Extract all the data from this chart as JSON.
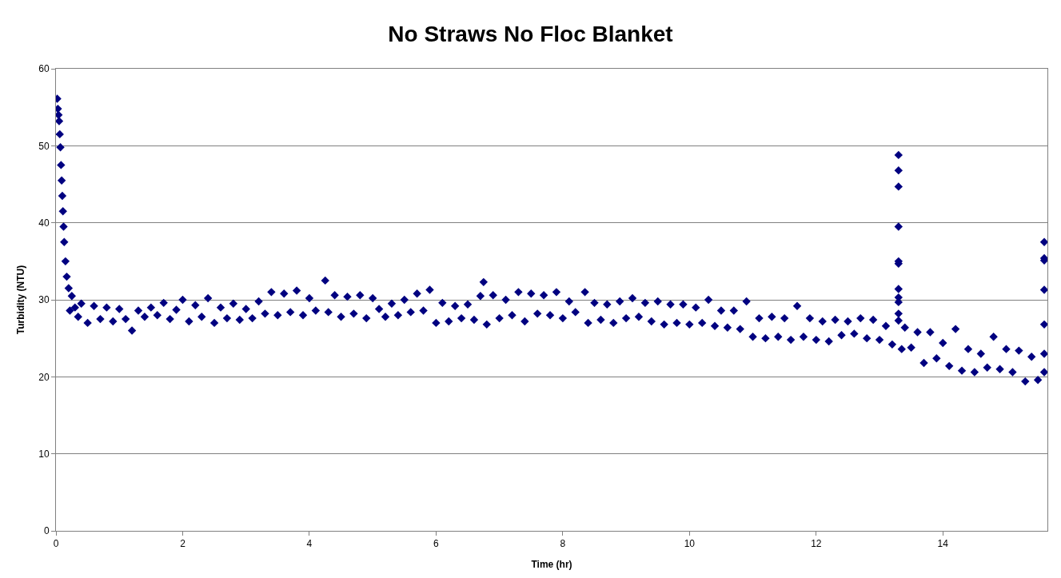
{
  "chart_data": {
    "type": "scatter",
    "title": "No Straws No Floc Blanket",
    "xlabel": "Time (hr)",
    "ylabel": "Turbidity (NTU)",
    "xlim": [
      0,
      15.65
    ],
    "xticks": [
      0,
      2,
      4,
      6,
      8,
      10,
      12,
      14
    ],
    "ylim": [
      0,
      60
    ],
    "yticks": [
      0,
      10,
      20,
      30,
      40,
      50,
      60
    ],
    "grid": "y",
    "marker": "diamond",
    "series": [
      {
        "color": "#000080",
        "x": [
          0.02,
          0.03,
          0.04,
          0.05,
          0.06,
          0.07,
          0.08,
          0.09,
          0.1,
          0.11,
          0.12,
          0.13,
          0.15,
          0.17,
          0.2,
          0.22,
          0.25,
          0.3,
          0.35,
          0.4,
          0.5,
          0.6,
          0.7,
          0.8,
          0.9,
          1.0,
          1.1,
          1.2,
          1.3,
          1.4,
          1.5,
          1.6,
          1.7,
          1.8,
          1.9,
          2.0,
          2.1,
          2.2,
          2.3,
          2.4,
          2.5,
          2.6,
          2.7,
          2.8,
          2.9,
          3.0,
          3.1,
          3.2,
          3.3,
          3.4,
          3.5,
          3.6,
          3.7,
          3.8,
          3.9,
          4.0,
          4.1,
          4.25,
          4.3,
          4.4,
          4.5,
          4.6,
          4.7,
          4.8,
          4.9,
          5.0,
          5.1,
          5.2,
          5.3,
          5.4,
          5.5,
          5.6,
          5.7,
          5.8,
          5.9,
          6.0,
          6.1,
          6.2,
          6.3,
          6.4,
          6.5,
          6.6,
          6.7,
          6.75,
          6.8,
          6.9,
          7.0,
          7.1,
          7.2,
          7.3,
          7.4,
          7.5,
          7.6,
          7.7,
          7.8,
          7.9,
          8.0,
          8.1,
          8.2,
          8.35,
          8.4,
          8.5,
          8.6,
          8.7,
          8.8,
          8.9,
          9.0,
          9.1,
          9.2,
          9.3,
          9.4,
          9.5,
          9.6,
          9.7,
          9.8,
          9.9,
          10.0,
          10.1,
          10.2,
          10.3,
          10.4,
          10.5,
          10.6,
          10.7,
          10.8,
          10.9,
          11.0,
          11.1,
          11.2,
          11.3,
          11.4,
          11.5,
          11.6,
          11.7,
          11.8,
          11.9,
          12.0,
          12.1,
          12.2,
          12.3,
          12.4,
          12.5,
          12.6,
          12.7,
          12.8,
          12.9,
          13.0,
          13.1,
          13.2,
          13.3,
          13.3,
          13.3,
          13.3,
          13.3,
          13.3,
          13.3,
          13.3,
          13.3,
          13.3,
          13.3,
          13.35,
          13.4,
          13.5,
          13.6,
          13.7,
          13.8,
          13.9,
          14.0,
          14.1,
          14.2,
          14.3,
          14.4,
          14.5,
          14.6,
          14.7,
          14.8,
          14.9,
          15.0,
          15.1,
          15.2,
          15.3,
          15.4,
          15.5,
          15.6,
          15.6,
          15.6,
          15.6,
          15.6,
          15.6,
          15.6
        ],
        "values": [
          56.1,
          54.8,
          54.0,
          53.2,
          51.5,
          49.8,
          47.5,
          45.5,
          43.5,
          41.5,
          39.5,
          37.5,
          35.0,
          33.0,
          31.5,
          28.6,
          30.5,
          29.0,
          27.8,
          29.5,
          27.0,
          29.2,
          27.5,
          29.0,
          27.2,
          28.8,
          27.5,
          26.0,
          28.6,
          27.8,
          29.0,
          28.0,
          29.6,
          27.5,
          28.7,
          30.0,
          27.2,
          29.3,
          27.8,
          30.2,
          27.0,
          29.0,
          27.6,
          29.5,
          27.4,
          28.8,
          27.6,
          29.8,
          28.2,
          31.0,
          28.0,
          30.8,
          28.4,
          31.2,
          28.0,
          30.2,
          28.6,
          32.5,
          28.4,
          30.6,
          27.8,
          30.4,
          28.2,
          30.6,
          27.6,
          30.2,
          28.8,
          27.8,
          29.5,
          28.0,
          30.0,
          28.4,
          30.8,
          28.6,
          31.3,
          27.0,
          29.6,
          27.2,
          29.2,
          27.6,
          29.4,
          27.4,
          30.5,
          32.3,
          26.8,
          30.6,
          27.6,
          30.0,
          28.0,
          31.0,
          27.2,
          30.8,
          28.2,
          30.6,
          28.0,
          31.0,
          27.6,
          29.8,
          28.4,
          31.0,
          27.0,
          29.6,
          27.4,
          29.4,
          27.0,
          29.8,
          27.6,
          30.2,
          27.8,
          29.6,
          27.2,
          29.8,
          26.8,
          29.4,
          27.0,
          29.4,
          26.8,
          29.0,
          27.0,
          30.0,
          26.6,
          28.6,
          26.4,
          28.6,
          26.2,
          29.8,
          25.2,
          27.6,
          25.0,
          27.8,
          25.2,
          27.6,
          24.8,
          29.2,
          25.2,
          27.6,
          24.8,
          27.2,
          24.6,
          27.4,
          25.4,
          27.2,
          25.6,
          27.6,
          25.0,
          27.4,
          24.8,
          26.6,
          24.2,
          48.8,
          46.8,
          44.7,
          39.5,
          35.0,
          34.7,
          31.4,
          30.3,
          29.7,
          28.2,
          27.3,
          23.6,
          26.4,
          23.8,
          25.8,
          21.8,
          25.8,
          22.4,
          24.4,
          21.4,
          26.2,
          20.8,
          23.6,
          20.6,
          23.0,
          21.2,
          25.2,
          21.0,
          23.6,
          20.6,
          23.4,
          19.4,
          22.6,
          19.6,
          37.5,
          35.4,
          35.1,
          31.3,
          26.8,
          23.0,
          20.6
        ]
      }
    ]
  }
}
